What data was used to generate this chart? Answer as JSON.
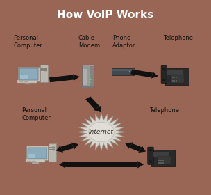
{
  "title": "How VoIP Works",
  "title_bg": "#111111",
  "title_color": "#ffffff",
  "title_fontsize": 11,
  "red_stripe_color": "#cc1111",
  "bg_color": "#e8e5e0",
  "border_color": "#999988",
  "labels": {
    "personal_computer_top": "Personal\nComputer",
    "cable_modem": "Cable\nModem",
    "phone_adaptor": "Phone\nAdaptor",
    "telephone_top": "Telephone",
    "personal_computer_bot": "Personal\nComputer",
    "internet": "Internet",
    "telephone_bot": "Telephone"
  },
  "label_fontsize": 6.0,
  "figure_bg": "#c8c4bc",
  "border_lw": 1.5,
  "border_color_outer": "#996655"
}
